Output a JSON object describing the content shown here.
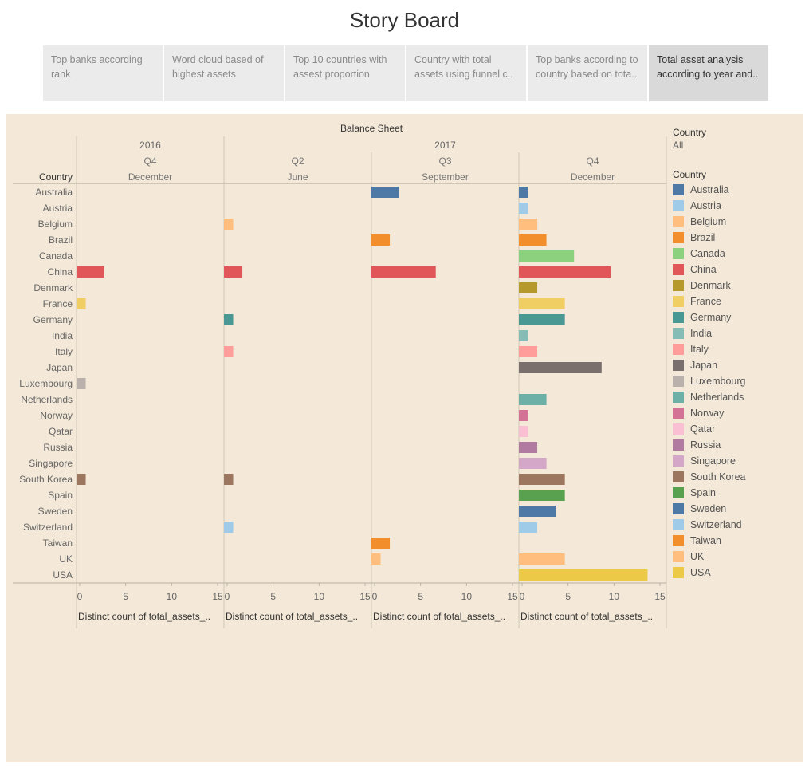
{
  "page": {
    "title": "Story Board"
  },
  "tabs": [
    {
      "label": "Top banks according rank",
      "active": false
    },
    {
      "label": "Word cloud based of highest assets",
      "active": false
    },
    {
      "label": "Top 10 countries with assest proportion",
      "active": false
    },
    {
      "label": "Country with total assets using funnel c..",
      "active": false
    },
    {
      "label": "Top banks according to country based on tota..",
      "active": false
    },
    {
      "label": "Total asset analysis according to year and..",
      "active": true
    }
  ],
  "filter": {
    "title": "Country",
    "value": "All"
  },
  "legend": {
    "title": "Country"
  },
  "chart_data": {
    "type": "bar",
    "orientation": "horizontal",
    "title": "Balance Sheet",
    "row_header": "Country",
    "categories": [
      "Australia",
      "Austria",
      "Belgium",
      "Brazil",
      "Canada",
      "China",
      "Denmark",
      "France",
      "Germany",
      "India",
      "Italy",
      "Japan",
      "Luxembourg",
      "Netherlands",
      "Norway",
      "Qatar",
      "Russia",
      "Singapore",
      "South Korea",
      "Spain",
      "Sweden",
      "Switzerland",
      "Taiwan",
      "UK",
      "USA"
    ],
    "colors": {
      "Australia": "#4e79a7",
      "Austria": "#a0cbe8",
      "Belgium": "#ffbe7d",
      "Brazil": "#f28e2b",
      "Canada": "#8cd17d",
      "China": "#e15759",
      "Denmark": "#b6992d",
      "France": "#f1ce63",
      "Germany": "#499894",
      "India": "#86bcb6",
      "Italy": "#ff9d9a",
      "Japan": "#79706e",
      "Luxembourg": "#bab0ac",
      "Netherlands": "#6cb0a8",
      "Norway": "#d37295",
      "Qatar": "#fabfd2",
      "Russia": "#b07aa1",
      "Singapore": "#d4a6c8",
      "South Korea": "#9d7660",
      "Spain": "#59a14f",
      "Sweden": "#4e79a7",
      "Switzerland": "#a0cbe8",
      "Taiwan": "#f28e2b",
      "UK": "#ffbe7d",
      "USA": "#edc948"
    },
    "xlim": [
      0,
      15
    ],
    "ticks": [
      0,
      5,
      10,
      15
    ],
    "panels": [
      {
        "year": "2016",
        "quarter": "Q4",
        "month": "December",
        "xlabel": "Distinct count of total_assets_..",
        "values": {
          "China": 3,
          "France": 1,
          "Luxembourg": 1,
          "South Korea": 1
        }
      },
      {
        "year": "2017",
        "quarter": "Q2",
        "month": "June",
        "xlabel": "Distinct count of total_assets_..",
        "values": {
          "Belgium": 1,
          "China": 2,
          "Germany": 1,
          "Italy": 1,
          "South Korea": 1,
          "Switzerland": 1
        }
      },
      {
        "year": "2017",
        "quarter": "Q3",
        "month": "September",
        "xlabel": "Distinct count of total_assets_..",
        "values": {
          "Australia": 3,
          "Brazil": 2,
          "China": 7,
          "Taiwan": 2,
          "UK": 1
        }
      },
      {
        "year": "2017",
        "quarter": "Q4",
        "month": "December",
        "xlabel": "Distinct count of total_assets_..",
        "values": {
          "Australia": 1,
          "Austria": 1,
          "Belgium": 2,
          "Brazil": 3,
          "Canada": 6,
          "China": 10,
          "Denmark": 2,
          "France": 5,
          "Germany": 5,
          "India": 1,
          "Italy": 2,
          "Japan": 9,
          "Netherlands": 3,
          "Norway": 1,
          "Qatar": 1,
          "Russia": 2,
          "Singapore": 3,
          "South Korea": 5,
          "Spain": 5,
          "Sweden": 4,
          "Switzerland": 2,
          "UK": 5,
          "USA": 14
        }
      }
    ],
    "years": [
      "2016",
      "2017"
    ],
    "grid": false,
    "legend_position": "right"
  }
}
